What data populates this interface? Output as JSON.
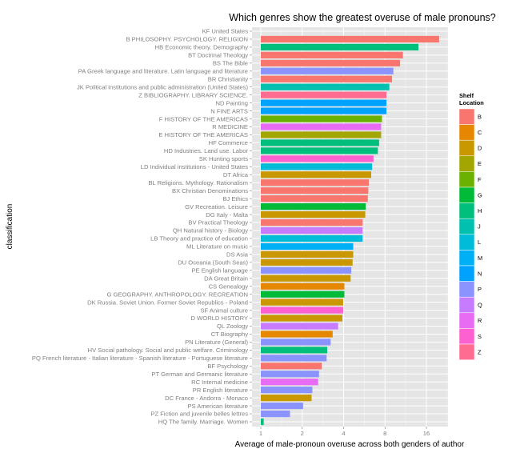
{
  "chart_data": {
    "type": "bar",
    "orientation": "horizontal",
    "title": "Which genres show the greatest overuse of male pronouns?",
    "xlabel": "Average of male-pronoun overuse across both genders of author",
    "ylabel": "classification",
    "x_scale": "log2",
    "xlim": [
      0.85,
      22
    ],
    "x_ticks": [
      1,
      2,
      4,
      8,
      16
    ],
    "x_tick_labels": [
      "1",
      "2",
      "4",
      "8",
      "16"
    ],
    "grid": true,
    "legend": {
      "title_line1": "Shelf",
      "title_line2": "Location",
      "position": "right",
      "entries": [
        {
          "key": "B",
          "color": "#F8766D"
        },
        {
          "key": "C",
          "color": "#E58700"
        },
        {
          "key": "D",
          "color": "#C99800"
        },
        {
          "key": "E",
          "color": "#A3A500"
        },
        {
          "key": "F",
          "color": "#6BB100"
        },
        {
          "key": "G",
          "color": "#00BA38"
        },
        {
          "key": "H",
          "color": "#00BF7D"
        },
        {
          "key": "J",
          "color": "#00C0AF"
        },
        {
          "key": "L",
          "color": "#00BCD8"
        },
        {
          "key": "M",
          "color": "#00B0F6"
        },
        {
          "key": "N",
          "color": "#00A2FF"
        },
        {
          "key": "P",
          "color": "#8B93FF"
        },
        {
          "key": "Q",
          "color": "#C77CFF"
        },
        {
          "key": "R",
          "color": "#E76BF3"
        },
        {
          "key": "S",
          "color": "#FD61D1"
        },
        {
          "key": "Z",
          "color": "#FF6C91"
        }
      ]
    },
    "categories": [
      "KF United States",
      "B PHILOSOPHY. PSYCHOLOGY. RELIGION",
      "HB Economic theory. Demography",
      "BT Doctrinal Theology",
      "BS The Bible",
      "PA Greek language and literature. Latin language and literature",
      "BR Christianity",
      "JK Political institutions and public administration (United States)",
      "Z BIBLIOGRAPHY. LIBRARY SCIENCE.",
      "ND Painting",
      "N FINE ARTS",
      "F HISTORY OF THE AMERICAS",
      "R MEDICINE",
      "E HISTORY OF THE AMERICAS",
      "HF Commerce",
      "HD Industries. Land use. Labor",
      "SK Hunting sports",
      "LD Individual institutions - United States",
      "DT Africa",
      "BL Religions. Mythology. Rationalism",
      "BX Christian Denominations",
      "BJ Ethics",
      "GV Recreation. Leisure",
      "DG Italy - Malta",
      "BV Practical Theology",
      "QH Natural history - Biology",
      "LB Theory and practice of education",
      "ML Literature on music",
      "DS Asia",
      "DU Oceania (South Seas)",
      "PE English language",
      "DA Great Britain",
      "CS Genealogy",
      "G GEOGRAPHY. ANTHROPOLOGY. RECREATION",
      "DK Russia. Soviet Union. Former Soviet Republics - Poland",
      "SF Animal culture",
      "D WORLD HISTORY",
      "QL Zoology",
      "CT Biography",
      "PN Literature (General)",
      "HV Social pathology. Social and public welfare. Criminology",
      "PQ French literature - Italian literature - Spanish literature - Portuguese literature",
      "BF Psychology",
      "PT German and Germanic literature",
      "RC Internal medicine",
      "PR English literature",
      "DC France - Andorra - Monaco",
      "PS American literature",
      "PZ Fiction and juvenile belles lettres",
      "HQ The family. Marriage. Women"
    ],
    "values": [
      null,
      19.8,
      14.0,
      10.8,
      10.3,
      9.2,
      9.0,
      8.6,
      8.2,
      8.2,
      8.2,
      7.6,
      7.5,
      7.5,
      7.25,
      7.1,
      6.6,
      6.45,
      6.35,
      6.1,
      6.05,
      6.0,
      5.8,
      5.75,
      5.5,
      5.5,
      5.5,
      4.7,
      4.7,
      4.65,
      4.55,
      4.5,
      4.05,
      4.05,
      3.97,
      3.97,
      3.92,
      3.65,
      3.33,
      3.22,
      3.04,
      3.01,
      2.78,
      2.65,
      2.61,
      2.37,
      2.34,
      2.03,
      1.63,
      1.05
    ],
    "shelf": [
      "K",
      "B",
      "H",
      "B",
      "B",
      "P",
      "B",
      "J",
      "Z",
      "N",
      "N",
      "F",
      "R",
      "E",
      "H",
      "H",
      "S",
      "L",
      "D",
      "B",
      "B",
      "B",
      "G",
      "D",
      "B",
      "Q",
      "L",
      "M",
      "D",
      "D",
      "P",
      "D",
      "C",
      "G",
      "D",
      "S",
      "D",
      "Q",
      "C",
      "P",
      "H",
      "P",
      "B",
      "P",
      "R",
      "P",
      "D",
      "P",
      "P",
      "H"
    ]
  }
}
